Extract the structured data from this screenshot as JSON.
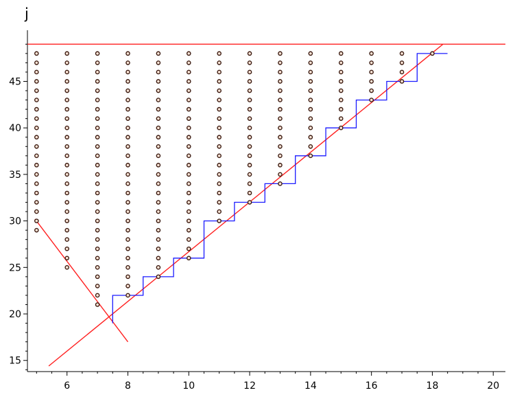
{
  "chart_data": {
    "type": "scatter",
    "title": "",
    "xlabel": "",
    "ylabel": "j",
    "xlim": [
      4.7,
      20.4
    ],
    "ylim": [
      13.8,
      50.5
    ],
    "x_ticks": [
      6,
      8,
      10,
      12,
      14,
      16,
      18,
      20
    ],
    "y_ticks": [
      15,
      20,
      25,
      30,
      35,
      40,
      45
    ],
    "grid": false,
    "colors": {
      "points_edge": "#3a1a10",
      "points_fill": "#fbe4d6",
      "red_lines": "#ff2020",
      "step_line": "#1a1aff",
      "axis": "#000000"
    },
    "point_columns": [
      {
        "x": 5,
        "y_min": 29,
        "y_max": 48
      },
      {
        "x": 6,
        "y_min": 25,
        "y_max": 48
      },
      {
        "x": 7,
        "y_min": 21,
        "y_max": 48
      },
      {
        "x": 8,
        "y_min": 22,
        "y_max": 48
      },
      {
        "x": 9,
        "y_min": 24,
        "y_max": 48
      },
      {
        "x": 10,
        "y_min": 26,
        "y_max": 48
      },
      {
        "x": 11,
        "y_min": 30,
        "y_max": 48
      },
      {
        "x": 12,
        "y_min": 32,
        "y_max": 48
      },
      {
        "x": 13,
        "y_min": 34,
        "y_max": 48
      },
      {
        "x": 14,
        "y_min": 37,
        "y_max": 48
      },
      {
        "x": 15,
        "y_min": 40,
        "y_max": 48
      },
      {
        "x": 16,
        "y_min": 43,
        "y_max": 48
      },
      {
        "x": 17,
        "y_min": 45,
        "y_max": 48
      },
      {
        "x": 18,
        "y_min": 48,
        "y_max": 48
      }
    ],
    "step_line": {
      "x": [
        7.5,
        7.5,
        8.5,
        8.5,
        9.5,
        9.5,
        10.5,
        10.5,
        11.5,
        11.5,
        12.5,
        12.5,
        13.5,
        13.5,
        14.5,
        14.5,
        15.5,
        15.5,
        16.5,
        16.5,
        17.5,
        17.5,
        18.5
      ],
      "y": [
        19,
        22,
        22,
        24,
        24,
        26,
        26,
        30,
        30,
        32,
        32,
        34,
        34,
        37,
        37,
        40,
        40,
        43,
        43,
        45,
        45,
        48,
        48
      ]
    },
    "lines": [
      {
        "kind": "horizontal",
        "y": 49,
        "x": [
          4.7,
          20.4
        ]
      },
      {
        "kind": "segment",
        "x": [
          4.95,
          8.0
        ],
        "y": [
          30.2,
          17.0
        ]
      },
      {
        "kind": "segment",
        "x": [
          5.4,
          18.35
        ],
        "y": [
          14.4,
          49.0
        ]
      }
    ]
  }
}
